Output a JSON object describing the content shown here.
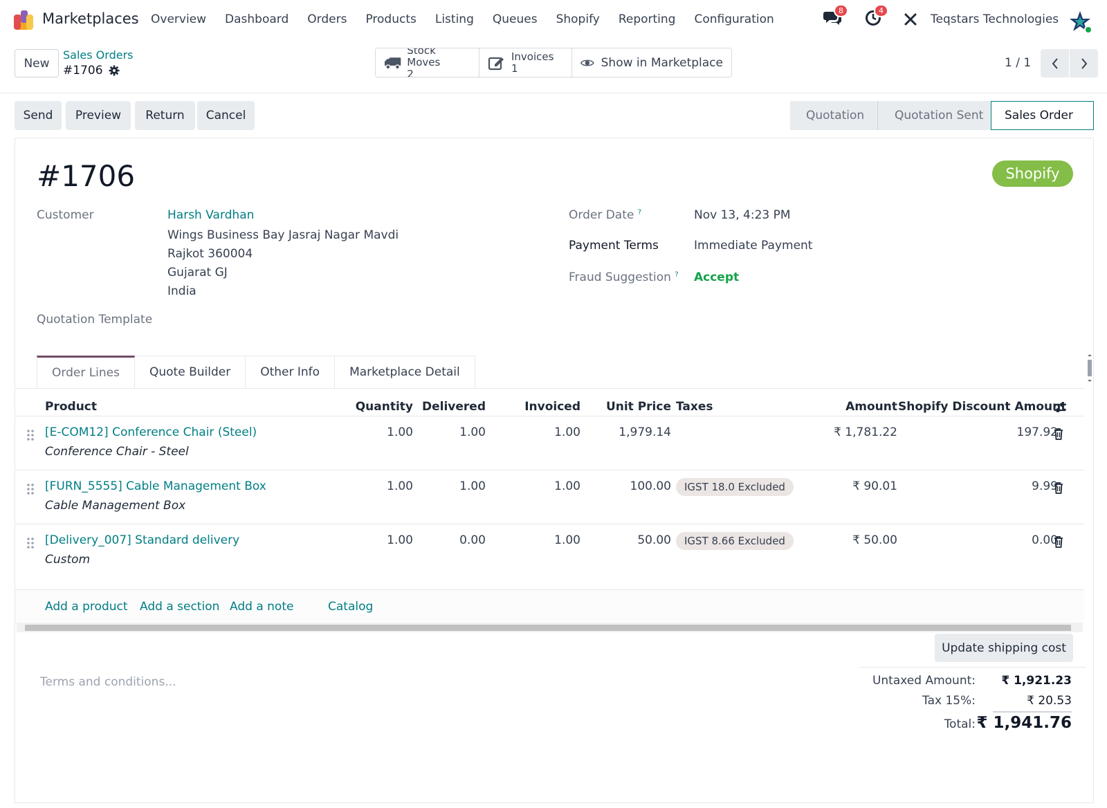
{
  "app": {
    "name": "Marketplaces"
  },
  "menu": [
    "Overview",
    "Dashboard",
    "Orders",
    "Products",
    "Listing",
    "Queues",
    "Shopify",
    "Reporting",
    "Configuration"
  ],
  "systray": {
    "messages_count": "8",
    "activities_count": "4",
    "company": "Teqstars Technologies"
  },
  "control_panel": {
    "new_label": "New",
    "breadcrumb_parent": "Sales Orders",
    "breadcrumb_current": "#1706",
    "smart_buttons": {
      "stock_moves_label": "Stock Moves",
      "stock_moves_count": "2",
      "invoices_label": "Invoices",
      "invoices_count": "1",
      "marketplace_label": "Show in Marketplace"
    },
    "pager": "1 / 1"
  },
  "actions": {
    "send": "Send",
    "preview": "Preview",
    "return": "Return",
    "cancel": "Cancel"
  },
  "statusbar": {
    "quotation": "Quotation",
    "quotation_sent": "Quotation Sent",
    "sales_order": "Sales Order",
    "active": "Sales Order"
  },
  "order": {
    "name": "#1706",
    "marketplace_tag": "Shopify",
    "customer_label": "Customer",
    "customer_name": "Harsh Vardhan",
    "address_lines": [
      "Wings Business Bay Jasraj Nagar Mavdi",
      "Rajkot 360004",
      "Gujarat GJ",
      "India"
    ],
    "quotation_template_label": "Quotation Template",
    "order_date_label": "Order Date",
    "order_date": "Nov 13, 4:23 PM",
    "payment_terms_label": "Payment Terms",
    "payment_terms": "Immediate Payment",
    "fraud_label": "Fraud Suggestion",
    "fraud_value": "Accept",
    "help_mark": "?"
  },
  "tabs": [
    "Order Lines",
    "Quote Builder",
    "Other Info",
    "Marketplace Detail"
  ],
  "table": {
    "headers": {
      "product": "Product",
      "quantity": "Quantity",
      "delivered": "Delivered",
      "invoiced": "Invoiced",
      "unit_price": "Unit Price",
      "taxes": "Taxes",
      "amount": "Amount",
      "discount": "Shopify Discount Amount"
    },
    "rows": [
      {
        "product": "[E-COM12] Conference Chair (Steel)",
        "description": "Conference Chair - Steel",
        "quantity": "1.00",
        "delivered": "1.00",
        "invoiced": "1.00",
        "unit_price": "1,979.14",
        "tax": "",
        "amount": "₹ 1,781.22",
        "discount": "197.92"
      },
      {
        "product": "[FURN_5555] Cable Management Box",
        "description": "Cable Management Box",
        "quantity": "1.00",
        "delivered": "1.00",
        "invoiced": "1.00",
        "unit_price": "100.00",
        "tax": "IGST 18.0 Excluded",
        "amount": "₹ 90.01",
        "discount": "9.99"
      },
      {
        "product": "[Delivery_007] Standard delivery",
        "description": "Custom",
        "quantity": "1.00",
        "delivered": "0.00",
        "invoiced": "1.00",
        "unit_price": "50.00",
        "tax": "IGST 8.66 Excluded",
        "amount": "₹ 50.00",
        "discount": "0.00"
      }
    ],
    "add_product": "Add a product",
    "add_section": "Add a section",
    "add_note": "Add a note",
    "catalog": "Catalog"
  },
  "footer": {
    "update_shipping": "Update shipping cost",
    "terms_placeholder": "Terms and conditions...",
    "untaxed_label": "Untaxed Amount:",
    "untaxed_value": "₹ 1,921.23",
    "tax_label": "Tax 15%:",
    "tax_value": "₹ 20.53",
    "total_label": "Total:",
    "total_value": "₹ 1,941.76"
  },
  "colors": {
    "accent": "#017e84",
    "brand": "#714b67",
    "shopify": "#84bd47",
    "accept": "#16a34a",
    "badge": "#e5484d"
  }
}
